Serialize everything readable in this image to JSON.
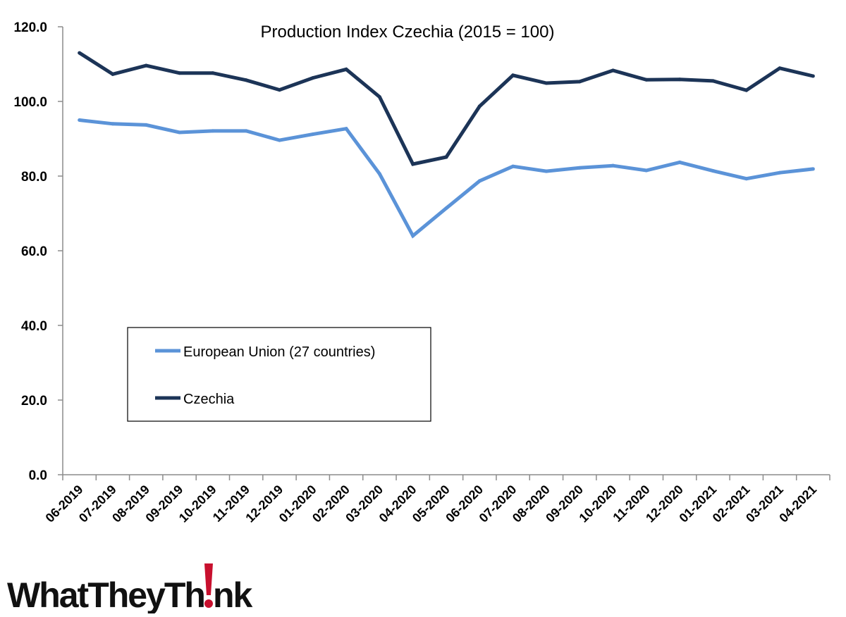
{
  "logo": {
    "text_part1": "WhatTheyTh",
    "text_part2": "nk",
    "accent_color": "#c8102e"
  },
  "chart_data": {
    "type": "line",
    "title": "Production Index Czechia (2015 = 100)",
    "xlabel": "",
    "ylabel": "",
    "x": [
      "06-2019",
      "07-2019",
      "08-2019",
      "09-2019",
      "10-2019",
      "11-2019",
      "12-2019",
      "01-2020",
      "02-2020",
      "03-2020",
      "04-2020",
      "05-2020",
      "06-2020",
      "07-2020",
      "08-2020",
      "09-2020",
      "10-2020",
      "11-2020",
      "12-2020",
      "01-2021",
      "02-2021",
      "03-2021",
      "04-2021"
    ],
    "ylim": [
      0,
      120
    ],
    "yticks": [
      "0.0",
      "20.0",
      "40.0",
      "60.0",
      "80.0",
      "100.0",
      "120.0"
    ],
    "grid": false,
    "legend_position": "lower-left inside plot",
    "series": [
      {
        "name": "European Union (27 countries)",
        "color": "#5b93d8",
        "values": [
          95.0,
          94.0,
          93.7,
          91.7,
          92.1,
          92.1,
          89.6,
          91.2,
          92.7,
          80.6,
          64.0,
          71.4,
          78.7,
          82.6,
          81.3,
          82.2,
          82.8,
          81.5,
          83.7,
          81.4,
          79.3,
          80.9,
          81.9
        ]
      },
      {
        "name": "Czechia",
        "color": "#1c3457",
        "values": [
          113.0,
          107.3,
          109.6,
          107.6,
          107.6,
          105.7,
          103.1,
          106.3,
          108.6,
          101.2,
          83.2,
          85.1,
          98.7,
          107.0,
          104.9,
          105.3,
          108.3,
          105.8,
          105.9,
          105.5,
          103.0,
          108.9,
          106.8
        ]
      }
    ]
  }
}
